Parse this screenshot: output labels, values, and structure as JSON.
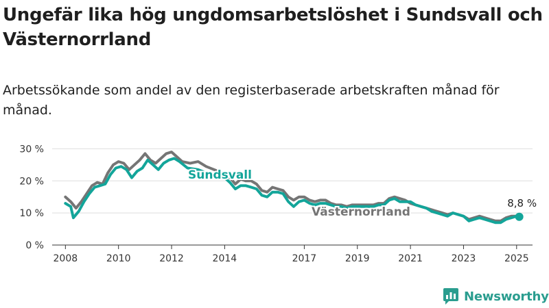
{
  "title": "Ungefär lika hög ungdomsarbetslöshet i Sundsvall och Västernorrland",
  "subtitle": "Arbetssökande som andel av den registerbaserade arbetskraften månad för månad.",
  "brand": "Newsworthy",
  "colors": {
    "sundsvall": "#13a59a",
    "vasternorrland": "#757575",
    "grid": "#dedede",
    "axis": "#333333"
  },
  "chart_data": {
    "type": "line",
    "title": "Ungefär lika hög ungdomsarbetslöshet i Sundsvall och Västernorrland",
    "subtitle": "Arbetssökande som andel av den registerbaserade arbetskraften månad för månad.",
    "xlabel": "",
    "ylabel": "",
    "x_ticks": [
      2008,
      2010,
      2012,
      2014,
      2017,
      2019,
      2021,
      2023,
      2025
    ],
    "xlim": [
      2007.5,
      2025.6
    ],
    "y_ticks": [
      0,
      10,
      20,
      30
    ],
    "y_tick_labels": [
      "0 %",
      "10 %",
      "20 %",
      "30 %"
    ],
    "ylim": [
      0,
      32
    ],
    "grid": true,
    "end_label": "8,8 %",
    "series": [
      {
        "name": "Västernorrland",
        "color": "#757575",
        "points": [
          [
            2008.0,
            15.0
          ],
          [
            2008.2,
            13.5
          ],
          [
            2008.4,
            11.5
          ],
          [
            2008.6,
            13.5
          ],
          [
            2008.8,
            16.0
          ],
          [
            2009.0,
            18.5
          ],
          [
            2009.2,
            19.5
          ],
          [
            2009.4,
            19.0
          ],
          [
            2009.6,
            22.5
          ],
          [
            2009.8,
            25.0
          ],
          [
            2010.0,
            26.0
          ],
          [
            2010.2,
            25.5
          ],
          [
            2010.4,
            23.5
          ],
          [
            2010.6,
            25.0
          ],
          [
            2010.8,
            26.5
          ],
          [
            2011.0,
            28.5
          ],
          [
            2011.2,
            26.5
          ],
          [
            2011.4,
            25.5
          ],
          [
            2011.6,
            27.0
          ],
          [
            2011.8,
            28.5
          ],
          [
            2012.0,
            29.0
          ],
          [
            2012.2,
            27.5
          ],
          [
            2012.4,
            26.0
          ],
          [
            2012.7,
            25.5
          ],
          [
            2013.0,
            26.0
          ],
          [
            2013.3,
            24.5
          ],
          [
            2013.6,
            23.5
          ],
          [
            2013.9,
            22.5
          ],
          [
            2014.0,
            22.0
          ],
          [
            2014.2,
            21.0
          ],
          [
            2014.4,
            19.0
          ],
          [
            2014.6,
            20.5
          ],
          [
            2014.8,
            20.0
          ],
          [
            2015.0,
            20.0
          ],
          [
            2015.2,
            19.0
          ],
          [
            2015.4,
            17.0
          ],
          [
            2015.6,
            16.5
          ],
          [
            2015.8,
            18.0
          ],
          [
            2016.0,
            17.5
          ],
          [
            2016.2,
            17.0
          ],
          [
            2016.4,
            15.0
          ],
          [
            2016.6,
            14.0
          ],
          [
            2016.8,
            15.0
          ],
          [
            2017.0,
            15.0
          ],
          [
            2017.2,
            14.0
          ],
          [
            2017.4,
            13.5
          ],
          [
            2017.6,
            14.0
          ],
          [
            2017.8,
            14.0
          ],
          [
            2018.0,
            13.0
          ],
          [
            2018.2,
            12.5
          ],
          [
            2018.4,
            12.5
          ],
          [
            2018.6,
            12.0
          ],
          [
            2018.8,
            12.5
          ],
          [
            2019.0,
            12.5
          ],
          [
            2019.2,
            12.5
          ],
          [
            2019.4,
            12.5
          ],
          [
            2019.6,
            12.5
          ],
          [
            2019.8,
            13.0
          ],
          [
            2020.0,
            13.0
          ],
          [
            2020.2,
            14.5
          ],
          [
            2020.4,
            15.0
          ],
          [
            2020.6,
            14.5
          ],
          [
            2020.8,
            14.0
          ],
          [
            2021.0,
            13.0
          ],
          [
            2021.2,
            12.5
          ],
          [
            2021.4,
            12.0
          ],
          [
            2021.6,
            11.5
          ],
          [
            2021.8,
            11.0
          ],
          [
            2022.0,
            10.5
          ],
          [
            2022.2,
            10.0
          ],
          [
            2022.4,
            9.5
          ],
          [
            2022.6,
            10.0
          ],
          [
            2022.8,
            9.5
          ],
          [
            2023.0,
            9.0
          ],
          [
            2023.2,
            8.0
          ],
          [
            2023.4,
            8.5
          ],
          [
            2023.6,
            9.0
          ],
          [
            2023.8,
            8.5
          ],
          [
            2024.0,
            8.0
          ],
          [
            2024.2,
            7.5
          ],
          [
            2024.4,
            7.5
          ],
          [
            2024.6,
            8.5
          ],
          [
            2024.8,
            9.0
          ],
          [
            2025.0,
            9.0
          ],
          [
            2025.1,
            9.0
          ]
        ]
      },
      {
        "name": "Sundsvall",
        "color": "#13a59a",
        "points": [
          [
            2008.0,
            13.0
          ],
          [
            2008.2,
            12.0
          ],
          [
            2008.3,
            8.5
          ],
          [
            2008.5,
            10.5
          ],
          [
            2008.7,
            13.5
          ],
          [
            2008.9,
            16.0
          ],
          [
            2009.1,
            18.0
          ],
          [
            2009.3,
            18.5
          ],
          [
            2009.5,
            19.0
          ],
          [
            2009.7,
            22.0
          ],
          [
            2009.9,
            24.0
          ],
          [
            2010.1,
            24.5
          ],
          [
            2010.3,
            23.5
          ],
          [
            2010.5,
            21.0
          ],
          [
            2010.7,
            23.0
          ],
          [
            2010.9,
            24.0
          ],
          [
            2011.1,
            26.5
          ],
          [
            2011.3,
            25.0
          ],
          [
            2011.5,
            23.5
          ],
          [
            2011.7,
            25.5
          ],
          [
            2011.9,
            26.5
          ],
          [
            2012.1,
            27.0
          ],
          [
            2012.3,
            26.0
          ],
          [
            2012.6,
            24.0
          ],
          [
            2013.0,
            23.5
          ],
          [
            2013.3,
            22.5
          ],
          [
            2013.6,
            22.0
          ],
          [
            2013.9,
            21.5
          ],
          [
            2014.0,
            21.0
          ],
          [
            2014.2,
            19.5
          ],
          [
            2014.4,
            17.5
          ],
          [
            2014.6,
            18.5
          ],
          [
            2014.8,
            18.5
          ],
          [
            2015.0,
            18.0
          ],
          [
            2015.2,
            17.5
          ],
          [
            2015.4,
            15.5
          ],
          [
            2015.6,
            15.0
          ],
          [
            2015.8,
            16.5
          ],
          [
            2016.0,
            16.5
          ],
          [
            2016.2,
            16.0
          ],
          [
            2016.4,
            13.5
          ],
          [
            2016.6,
            12.0
          ],
          [
            2016.8,
            13.5
          ],
          [
            2017.0,
            14.0
          ],
          [
            2017.2,
            13.0
          ],
          [
            2017.4,
            12.5
          ],
          [
            2017.6,
            13.0
          ],
          [
            2017.8,
            13.0
          ],
          [
            2018.0,
            12.5
          ],
          [
            2018.2,
            12.0
          ],
          [
            2018.4,
            12.0
          ],
          [
            2018.6,
            11.5
          ],
          [
            2018.8,
            12.0
          ],
          [
            2019.0,
            12.0
          ],
          [
            2019.2,
            12.0
          ],
          [
            2019.4,
            12.0
          ],
          [
            2019.6,
            12.0
          ],
          [
            2019.8,
            12.5
          ],
          [
            2020.0,
            12.5
          ],
          [
            2020.2,
            14.0
          ],
          [
            2020.4,
            14.5
          ],
          [
            2020.6,
            13.5
          ],
          [
            2020.8,
            13.5
          ],
          [
            2021.0,
            13.5
          ],
          [
            2021.2,
            12.5
          ],
          [
            2021.4,
            12.0
          ],
          [
            2021.6,
            11.5
          ],
          [
            2021.8,
            10.5
          ],
          [
            2022.0,
            10.0
          ],
          [
            2022.2,
            9.5
          ],
          [
            2022.4,
            9.0
          ],
          [
            2022.6,
            10.0
          ],
          [
            2022.8,
            9.5
          ],
          [
            2023.0,
            9.0
          ],
          [
            2023.2,
            7.5
          ],
          [
            2023.4,
            8.0
          ],
          [
            2023.6,
            8.5
          ],
          [
            2023.8,
            8.0
          ],
          [
            2024.0,
            7.5
          ],
          [
            2024.2,
            7.0
          ],
          [
            2024.4,
            7.0
          ],
          [
            2024.6,
            8.0
          ],
          [
            2024.8,
            8.5
          ],
          [
            2025.0,
            9.0
          ],
          [
            2025.1,
            8.8
          ]
        ]
      }
    ]
  }
}
